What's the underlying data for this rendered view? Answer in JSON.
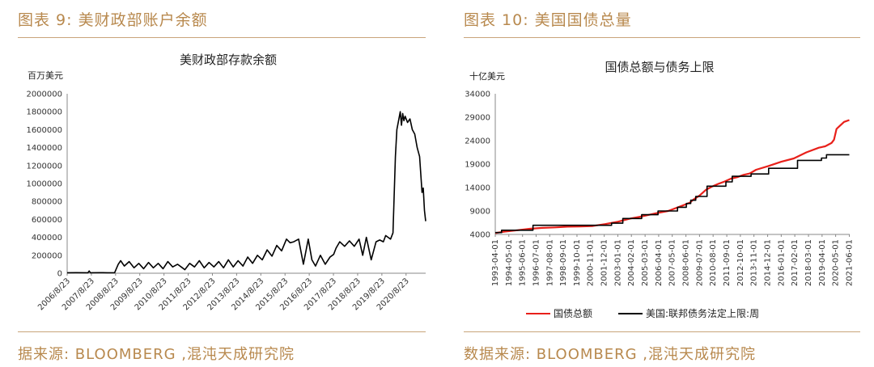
{
  "left_panel": {
    "title": "图表 9: 美财政部账户余额",
    "source": "据来源: BLOOMBERG ,混沌天成研究院"
  },
  "right_panel": {
    "title": "图表 10: 美国国债总量",
    "source": "数据来源: BLOOMBERG ,混沌天成研究院"
  },
  "chart_data": [
    {
      "type": "line",
      "title": "美财政部存款余额",
      "ylabel": "百万美元",
      "ylim": [
        0,
        2000000
      ],
      "yticks": [
        0,
        200000,
        400000,
        600000,
        800000,
        1000000,
        1200000,
        1400000,
        1600000,
        1800000,
        2000000
      ],
      "xlim": [
        2006.64,
        2021.45
      ],
      "xtick_labels": [
        "2006/8/23",
        "2007/8/23",
        "2008/8/23",
        "2009/8/23",
        "2010/8/23",
        "2011/8/23",
        "2012/8/23",
        "2013/8/23",
        "2014/8/23",
        "2015/8/23",
        "2016/8/23",
        "2017/8/23",
        "2018/8/23",
        "2019/8/23",
        "2020/8/23"
      ],
      "xtick_values": [
        2006.64,
        2007.64,
        2008.64,
        2009.64,
        2010.64,
        2011.64,
        2012.64,
        2013.64,
        2014.64,
        2015.64,
        2016.64,
        2017.64,
        2018.64,
        2019.64,
        2020.64
      ],
      "series": [
        {
          "color": "#000000",
          "x": [
            2006.64,
            2007.0,
            2007.5,
            2007.55,
            2007.6,
            2008.0,
            2008.3,
            2008.6,
            2008.75,
            2008.85,
            2009.0,
            2009.2,
            2009.4,
            2009.6,
            2009.8,
            2010.0,
            2010.2,
            2010.4,
            2010.6,
            2010.8,
            2011.0,
            2011.2,
            2011.4,
            2011.5,
            2011.7,
            2011.9,
            2012.1,
            2012.3,
            2012.5,
            2012.7,
            2012.9,
            2013.1,
            2013.3,
            2013.5,
            2013.7,
            2013.9,
            2014.1,
            2014.3,
            2014.5,
            2014.7,
            2014.9,
            2015.1,
            2015.3,
            2015.5,
            2015.7,
            2015.85,
            2016.0,
            2016.2,
            2016.4,
            2016.6,
            2016.75,
            2016.9,
            2017.1,
            2017.3,
            2017.5,
            2017.65,
            2017.75,
            2017.9,
            2018.1,
            2018.3,
            2018.5,
            2018.7,
            2018.85,
            2019.0,
            2019.2,
            2019.4,
            2019.55,
            2019.7,
            2019.8,
            2019.9,
            2020.0,
            2020.1,
            2020.2,
            2020.26,
            2020.33,
            2020.4,
            2020.45,
            2020.5,
            2020.55,
            2020.6,
            2020.7,
            2020.8,
            2020.9,
            2021.0,
            2021.1,
            2021.2,
            2021.3,
            2021.35,
            2021.4,
            2021.45
          ],
          "y": [
            5000,
            6000,
            5000,
            25000,
            5000,
            6000,
            5000,
            5000,
            100000,
            140000,
            80000,
            130000,
            60000,
            110000,
            50000,
            120000,
            60000,
            110000,
            50000,
            130000,
            70000,
            100000,
            60000,
            40000,
            110000,
            70000,
            140000,
            60000,
            120000,
            70000,
            130000,
            60000,
            150000,
            70000,
            140000,
            80000,
            180000,
            110000,
            200000,
            150000,
            260000,
            190000,
            310000,
            250000,
            380000,
            340000,
            350000,
            380000,
            100000,
            380000,
            150000,
            80000,
            200000,
            100000,
            180000,
            210000,
            280000,
            350000,
            300000,
            360000,
            300000,
            380000,
            200000,
            400000,
            150000,
            350000,
            370000,
            350000,
            420000,
            400000,
            380000,
            450000,
            1300000,
            1600000,
            1700000,
            1800000,
            1650000,
            1780000,
            1700000,
            1750000,
            1680000,
            1720000,
            1600000,
            1550000,
            1400000,
            1300000,
            900000,
            950000,
            700000,
            580000
          ]
        }
      ]
    },
    {
      "type": "line",
      "title": "国债总额与债务上限",
      "ylabel": "十亿美元",
      "ylim": [
        4000,
        34000
      ],
      "yticks": [
        4000,
        9000,
        14000,
        19000,
        24000,
        29000,
        34000
      ],
      "xlim": [
        1993.25,
        2021.45
      ],
      "xtick_labels": [
        "1993-04-01",
        "1994-05-01",
        "1995-06-01",
        "1996-07-01",
        "1997-08-01",
        "1998-09-01",
        "1999-10-01",
        "2000-11-01",
        "2001-12-01",
        "2003-01-01",
        "2004-02-01",
        "2005-03-01",
        "2006-04-01",
        "2007-05-01",
        "2008-06-01",
        "2009-07-01",
        "2010-08-01",
        "2011-09-01",
        "2012-10-01",
        "2013-11-01",
        "2014-12-01",
        "2016-01-01",
        "2017-02-01",
        "2018-03-01",
        "2019-04-01",
        "2020-05-01",
        "2021-06-01"
      ],
      "xtick_values": [
        1993.25,
        1994.33,
        1995.42,
        1996.5,
        1997.58,
        1998.67,
        1999.75,
        2000.83,
        2001.92,
        2003.0,
        2004.08,
        2005.17,
        2006.25,
        2007.33,
        2008.42,
        2009.5,
        2010.58,
        2011.67,
        2012.75,
        2013.83,
        2014.92,
        2016.0,
        2017.08,
        2018.17,
        2019.25,
        2020.33,
        2021.42
      ],
      "legend_position": "bottom",
      "series": [
        {
          "name": "国债总额",
          "color": "#e8201a",
          "x": [
            1993.25,
            1994.0,
            1995.0,
            1996.0,
            1997.0,
            1998.0,
            1999.0,
            2000.0,
            2001.0,
            2002.0,
            2003.0,
            2004.0,
            2005.0,
            2006.0,
            2007.0,
            2008.0,
            2008.75,
            2009.0,
            2009.5,
            2010.0,
            2010.5,
            2011.0,
            2011.5,
            2012.0,
            2012.5,
            2013.0,
            2013.5,
            2014.0,
            2015.0,
            2016.0,
            2017.0,
            2018.0,
            2019.0,
            2019.5,
            2020.0,
            2020.2,
            2020.4,
            2020.6,
            2021.0,
            2021.42
          ],
          "y": [
            4300,
            4600,
            4900,
            5200,
            5400,
            5500,
            5650,
            5700,
            5800,
            6200,
            6700,
            7400,
            7900,
            8500,
            9000,
            10000,
            10800,
            11400,
            12300,
            13500,
            14200,
            14800,
            15300,
            15900,
            16200,
            16700,
            17000,
            17800,
            18600,
            19500,
            20200,
            21500,
            22500,
            22800,
            23500,
            24200,
            26500,
            27000,
            28000,
            28400
          ]
        },
        {
          "name": "美国:联邦债务法定上限:周",
          "color": "#000000",
          "x": [
            1993.25,
            1993.75,
            1993.75,
            1996.25,
            1996.25,
            2002.5,
            2002.5,
            2003.4,
            2003.4,
            2004.9,
            2004.9,
            2006.2,
            2006.2,
            2007.75,
            2007.75,
            2008.45,
            2008.45,
            2008.8,
            2008.8,
            2009.2,
            2009.2,
            2010.1,
            2010.1,
            2011.6,
            2011.6,
            2012.1,
            2012.1,
            2013.6,
            2013.6,
            2015.0,
            2015.0,
            2017.3,
            2017.3,
            2019.2,
            2019.2,
            2019.6,
            2019.6,
            2021.42
          ],
          "y": [
            4400,
            4400,
            4900,
            4900,
            5950,
            5950,
            6400,
            6400,
            7400,
            7400,
            8200,
            8200,
            9000,
            9000,
            9800,
            9800,
            10600,
            10600,
            11300,
            11300,
            12100,
            12100,
            14300,
            14300,
            15200,
            15200,
            16400,
            16400,
            16900,
            16900,
            18100,
            18100,
            19800,
            19800,
            20300,
            20300,
            21000,
            21000
          ]
        }
      ]
    }
  ]
}
